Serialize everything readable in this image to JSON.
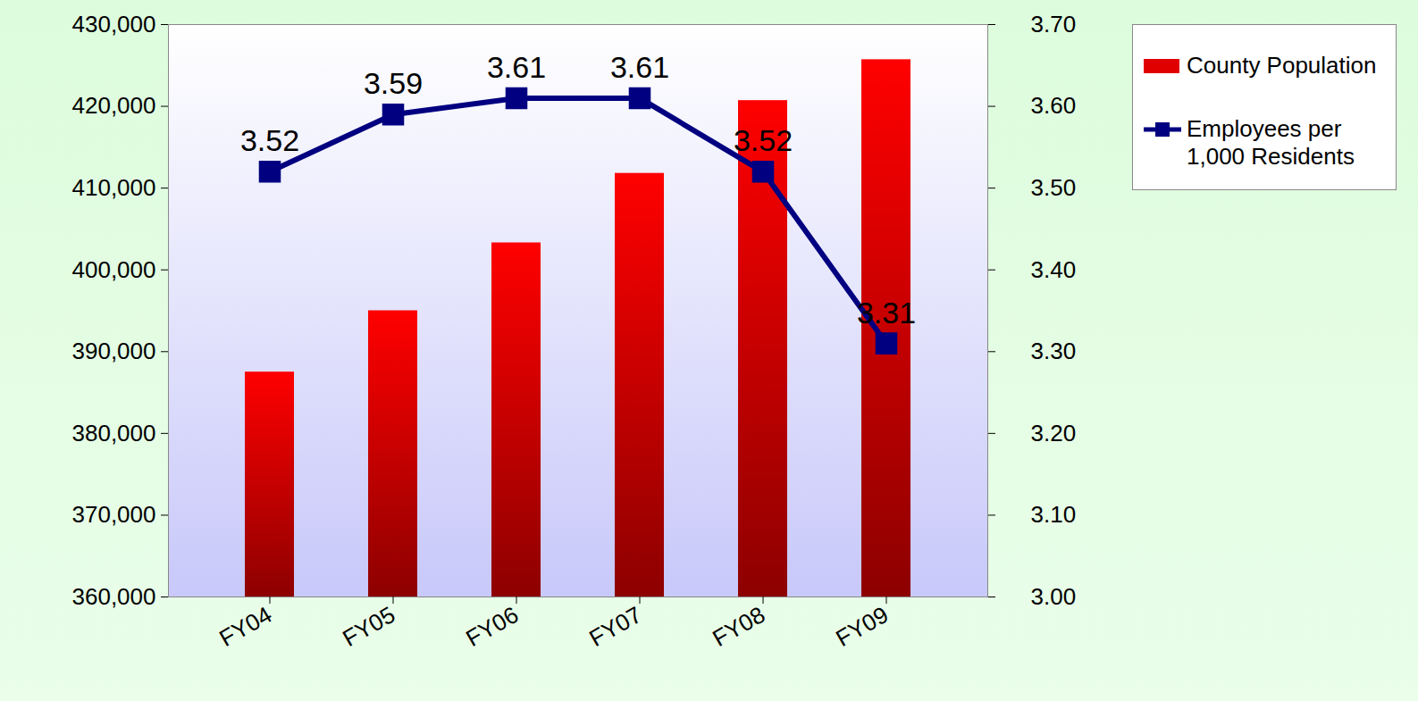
{
  "chart_data": {
    "type": "bar",
    "categories": [
      "FY04",
      "FY05",
      "FY06",
      "FY07",
      "FY08",
      "FY09"
    ],
    "series": [
      {
        "name": "County Population",
        "type": "bar",
        "color": "#e00000",
        "values": [
          387500,
          395000,
          403300,
          411800,
          420700,
          425700
        ]
      },
      {
        "name": "Employees per 1,000 Residents",
        "type": "line",
        "color": "#000080",
        "marker": "square",
        "axis": "y2",
        "data_labels": true,
        "values": [
          3.52,
          3.59,
          3.61,
          3.61,
          3.52,
          3.31
        ]
      }
    ],
    "ylim": [
      360000,
      430000
    ],
    "yticks": [
      {
        "value": 360000,
        "label": "360,000"
      },
      {
        "value": 370000,
        "label": "370,000"
      },
      {
        "value": 380000,
        "label": "380,000"
      },
      {
        "value": 390000,
        "label": "390,000"
      },
      {
        "value": 400000,
        "label": "400,000"
      },
      {
        "value": 410000,
        "label": "410,000"
      },
      {
        "value": 420000,
        "label": "420,000"
      },
      {
        "value": 430000,
        "label": "430,000"
      }
    ],
    "y2lim": [
      3.0,
      3.7
    ],
    "y2ticks": [
      {
        "value": 3.0,
        "label": "3.00"
      },
      {
        "value": 3.1,
        "label": "3.10"
      },
      {
        "value": 3.2,
        "label": "3.20"
      },
      {
        "value": 3.3,
        "label": "3.30"
      },
      {
        "value": 3.4,
        "label": "3.40"
      },
      {
        "value": 3.5,
        "label": "3.50"
      },
      {
        "value": 3.6,
        "label": "3.60"
      },
      {
        "value": 3.7,
        "label": "3.70"
      }
    ],
    "grid": false,
    "legend": "right"
  }
}
